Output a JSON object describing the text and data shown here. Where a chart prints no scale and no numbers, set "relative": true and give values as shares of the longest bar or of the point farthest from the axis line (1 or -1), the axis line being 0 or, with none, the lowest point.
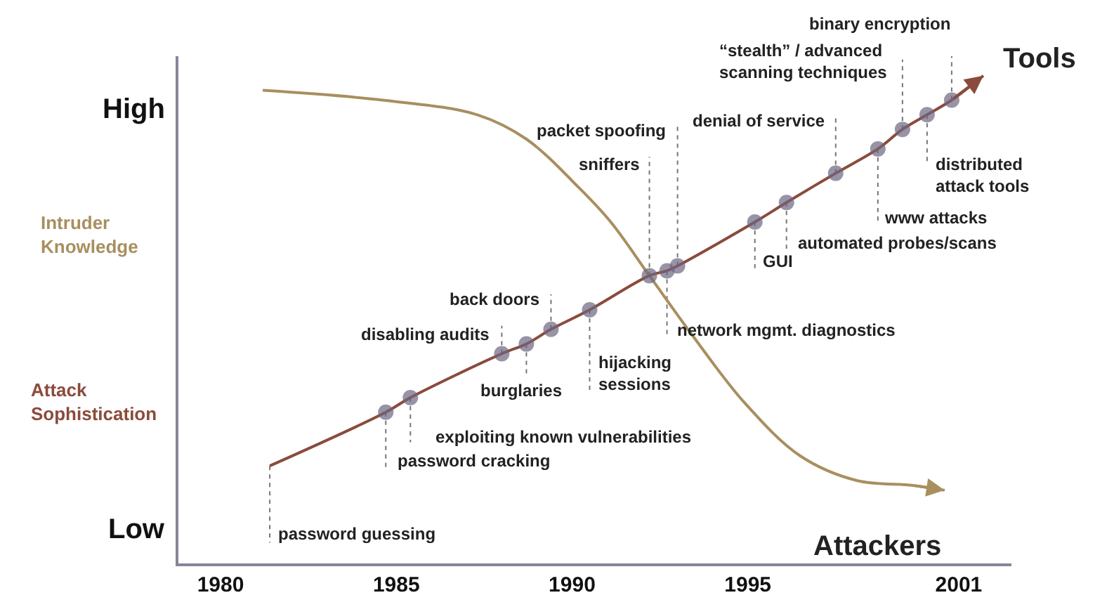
{
  "chart_data": {
    "type": "line",
    "relative": true,
    "grid": false,
    "legend": false,
    "xlim": [
      1978.8,
      2002.5
    ],
    "xticks": [
      1980,
      1985,
      1990,
      1995,
      2001
    ],
    "series": [
      {
        "name": "Attackers",
        "color": "#a88f5f",
        "marker": "none",
        "x": [
          1981.2,
          1984.6,
          1987.3,
          1988.7,
          1990.2,
          1991.1,
          1992.2,
          1993.4,
          1994.9,
          1996.5,
          1998.1,
          1999.7,
          2000.6
        ],
        "values": [
          0.97,
          0.95,
          0.92,
          0.87,
          0.77,
          0.7,
          0.59,
          0.47,
          0.33,
          0.22,
          0.17,
          0.16,
          0.15
        ]
      },
      {
        "name": "Tools",
        "color": "#8a4b3c",
        "marker": "circle",
        "x": [
          1981.4,
          1984.7,
          1985.4,
          1988.0,
          1988.7,
          1989.4,
          1990.5,
          1992.2,
          1992.7,
          1993.0,
          1995.2,
          1996.1,
          1997.5,
          1998.7,
          1999.4,
          2000.1,
          2000.8,
          2001.7
        ],
        "values": [
          0.2,
          0.31,
          0.34,
          0.43,
          0.45,
          0.48,
          0.52,
          0.59,
          0.6,
          0.61,
          0.7,
          0.74,
          0.8,
          0.85,
          0.89,
          0.92,
          0.95,
          1.0
        ]
      }
    ],
    "annotations": [
      "High",
      "Low",
      "Intruder\nKnowledge",
      "Attack\nSophistication",
      {
        "text": "password guessing",
        "x": 1981.4,
        "y": 0.2
      },
      {
        "text": "password cracking",
        "x": 1984.7,
        "y": 0.31
      },
      {
        "text": "exploiting known vulnerabilities",
        "x": 1985.4,
        "y": 0.34
      },
      {
        "text": "disabling audits",
        "x": 1988.0,
        "y": 0.43
      },
      {
        "text": "burglaries",
        "x": 1988.7,
        "y": 0.45
      },
      {
        "text": "back doors",
        "x": 1989.4,
        "y": 0.48
      },
      {
        "text": "hijacking\nsessions",
        "x": 1990.5,
        "y": 0.52
      },
      {
        "text": "sniffers",
        "x": 1992.2,
        "y": 0.59
      },
      {
        "text": "network mgmt. diagnostics",
        "x": 1992.7,
        "y": 0.6
      },
      {
        "text": "packet spoofing",
        "x": 1993.0,
        "y": 0.61
      },
      {
        "text": "GUI",
        "x": 1995.2,
        "y": 0.7
      },
      {
        "text": "automated probes/scans",
        "x": 1996.1,
        "y": 0.74
      },
      {
        "text": "denial of service",
        "x": 1997.5,
        "y": 0.8
      },
      {
        "text": "www attacks",
        "x": 1998.7,
        "y": 0.85
      },
      {
        "text": "“stealth” / advanced\nscanning techniques",
        "x": 1999.4,
        "y": 0.89
      },
      {
        "text": "distributed\nattack tools",
        "x": 2000.1,
        "y": 0.92
      },
      {
        "text": "binary encryption",
        "x": 2000.8,
        "y": 0.95
      }
    ]
  }
}
